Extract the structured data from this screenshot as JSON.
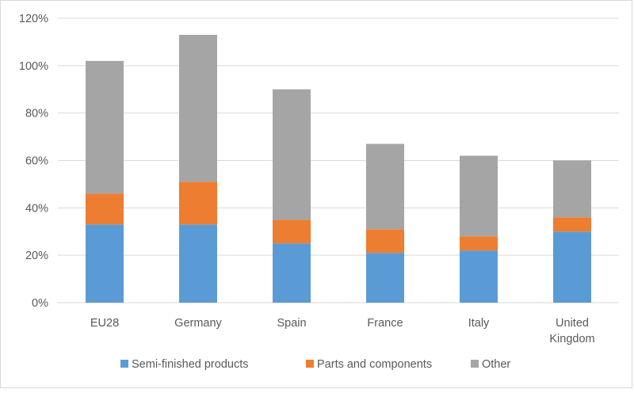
{
  "chart_data": {
    "type": "bar",
    "stacked": true,
    "categories": [
      [
        "EU28"
      ],
      [
        "Germany"
      ],
      [
        "Spain"
      ],
      [
        "France"
      ],
      [
        "Italy"
      ],
      [
        "United",
        "Kingdom"
      ]
    ],
    "series": [
      {
        "name": "Semi-finished products",
        "color": "#5b9bd5",
        "values": [
          33,
          33,
          25,
          21,
          22,
          30
        ]
      },
      {
        "name": "Parts and components",
        "color": "#ed7d31",
        "values": [
          13,
          18,
          10,
          10,
          6,
          6
        ]
      },
      {
        "name": "Other",
        "color": "#a5a5a5",
        "values": [
          56,
          62,
          55,
          36,
          34,
          24
        ]
      }
    ],
    "ylim": [
      0,
      120
    ],
    "yticks": [
      0,
      20,
      40,
      60,
      80,
      100,
      120
    ],
    "ytick_labels": [
      "0%",
      "20%",
      "40%",
      "60%",
      "80%",
      "100%",
      "120%"
    ],
    "grid": true,
    "gridline_color": "#d9d9d9",
    "legend_position": "bottom"
  }
}
